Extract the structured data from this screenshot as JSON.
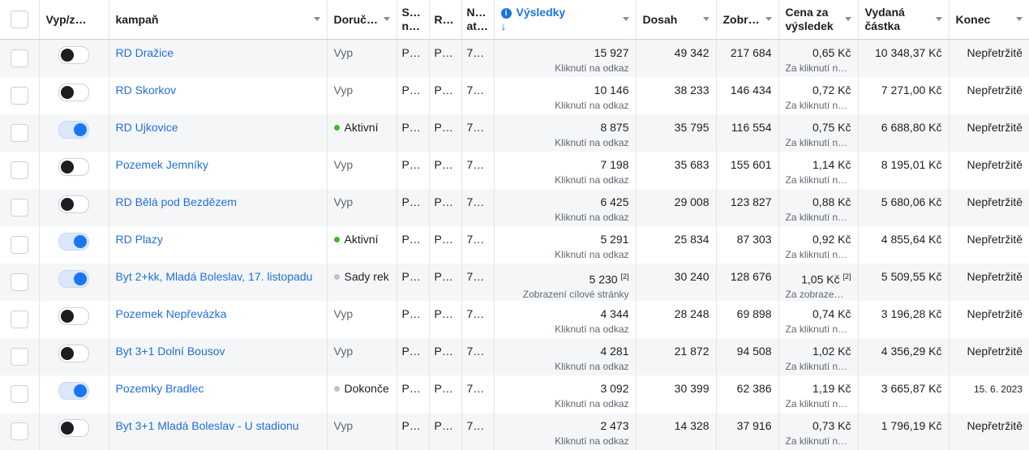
{
  "columns": {
    "onoff": "Vyp/z…",
    "campaign": "kampaň",
    "delivery": "Doruč…",
    "strategy": "S…\nn…",
    "r": "R…",
    "attribution": "N…\nat…",
    "results": "Výsledky",
    "results_sort": "↓",
    "reach": "Dosah",
    "impressions": "Zobr…",
    "cost_per_result": "Cena za výsledek",
    "amount_spent": "Vydaná částka",
    "end": "Konec"
  },
  "status_colors": {
    "active": "#42b72a",
    "neutral": "#bec3c9"
  },
  "rows": [
    {
      "toggle": false,
      "name": "RD Dražice",
      "delivery": "Vyp",
      "dot": null,
      "s": "P…",
      "r": "P…",
      "n": "7…",
      "results": "15 927",
      "results_note": "",
      "results_type": "Kliknutí na odkaz",
      "reach": "49 342",
      "impressions": "217 684",
      "cpr": "0,65 Kč",
      "cpr_note": "",
      "cpr_type": "Za kliknutí na…",
      "spent": "10 348,37 Kč",
      "end": "Nepřetržitě",
      "end_small": false
    },
    {
      "toggle": false,
      "name": "RD Skorkov",
      "delivery": "Vyp",
      "dot": null,
      "s": "P…",
      "r": "P…",
      "n": "7…",
      "results": "10 146",
      "results_note": "",
      "results_type": "Kliknutí na odkaz",
      "reach": "38 233",
      "impressions": "146 434",
      "cpr": "0,72 Kč",
      "cpr_note": "",
      "cpr_type": "Za kliknutí na…",
      "spent": "7 271,00 Kč",
      "end": "Nepřetržitě",
      "end_small": false
    },
    {
      "toggle": true,
      "name": "RD Ujkovice",
      "delivery": "Aktivní",
      "dot": "active",
      "s": "P…",
      "r": "P…",
      "n": "7…",
      "results": "8 875",
      "results_note": "",
      "results_type": "Kliknutí na odkaz",
      "reach": "35 795",
      "impressions": "116 554",
      "cpr": "0,75 Kč",
      "cpr_note": "",
      "cpr_type": "Za kliknutí na…",
      "spent": "6 688,80 Kč",
      "end": "Nepřetržitě",
      "end_small": false
    },
    {
      "toggle": false,
      "name": "Pozemek Jemníky",
      "delivery": "Vyp",
      "dot": null,
      "s": "P…",
      "r": "P…",
      "n": "7…",
      "results": "7 198",
      "results_note": "",
      "results_type": "Kliknutí na odkaz",
      "reach": "35 683",
      "impressions": "155 601",
      "cpr": "1,14 Kč",
      "cpr_note": "",
      "cpr_type": "Za kliknutí na…",
      "spent": "8 195,01 Kč",
      "end": "Nepřetržitě",
      "end_small": false
    },
    {
      "toggle": false,
      "name": "RD Bělá pod Bezdězem",
      "delivery": "Vyp",
      "dot": null,
      "s": "P…",
      "r": "P…",
      "n": "7…",
      "results": "6 425",
      "results_note": "",
      "results_type": "Kliknutí na odkaz",
      "reach": "29 008",
      "impressions": "123 827",
      "cpr": "0,88 Kč",
      "cpr_note": "",
      "cpr_type": "Za kliknutí na…",
      "spent": "5 680,06 Kč",
      "end": "Nepřetržitě",
      "end_small": false
    },
    {
      "toggle": true,
      "name": "RD Plazy",
      "delivery": "Aktivní",
      "dot": "active",
      "s": "P…",
      "r": "P…",
      "n": "7…",
      "results": "5 291",
      "results_note": "",
      "results_type": "Kliknutí na odkaz",
      "reach": "25 834",
      "impressions": "87 303",
      "cpr": "0,92 Kč",
      "cpr_note": "",
      "cpr_type": "Za kliknutí na…",
      "spent": "4 855,64 Kč",
      "end": "Nepřetržitě",
      "end_small": false
    },
    {
      "toggle": true,
      "name": "Byt 2+kk, Mladá Boleslav, 17. listopadu",
      "delivery": "Sady rek",
      "dot": "neutral",
      "s": "P…",
      "r": "P…",
      "n": "7…",
      "results": "5 230",
      "results_note": "[2]",
      "results_type": "Zobrazení cílové stránky",
      "reach": "30 240",
      "impressions": "128 676",
      "cpr": "1,05 Kč",
      "cpr_note": "[2]",
      "cpr_type": "Za zobraze…",
      "spent": "5 509,55 Kč",
      "end": "Nepřetržitě",
      "end_small": false
    },
    {
      "toggle": false,
      "name": "Pozemek Nepřevázka",
      "delivery": "Vyp",
      "dot": null,
      "s": "P…",
      "r": "P…",
      "n": "7…",
      "results": "4 344",
      "results_note": "",
      "results_type": "Kliknutí na odkaz",
      "reach": "28 248",
      "impressions": "69 898",
      "cpr": "0,74 Kč",
      "cpr_note": "",
      "cpr_type": "Za kliknutí na…",
      "spent": "3 196,28 Kč",
      "end": "Nepřetržitě",
      "end_small": false
    },
    {
      "toggle": false,
      "name": "Byt 3+1 Dolní Bousov",
      "delivery": "Vyp",
      "dot": null,
      "s": "P…",
      "r": "P…",
      "n": "7…",
      "results": "4 281",
      "results_note": "",
      "results_type": "Kliknutí na odkaz",
      "reach": "21 872",
      "impressions": "94 508",
      "cpr": "1,02 Kč",
      "cpr_note": "",
      "cpr_type": "Za kliknutí na…",
      "spent": "4 356,29 Kč",
      "end": "Nepřetržitě",
      "end_small": false
    },
    {
      "toggle": true,
      "name": "Pozemky Bradlec",
      "delivery": "Dokonče",
      "dot": "neutral",
      "s": "P…",
      "r": "P…",
      "n": "7…",
      "results": "3 092",
      "results_note": "",
      "results_type": "Kliknutí na odkaz",
      "reach": "30 399",
      "impressions": "62 386",
      "cpr": "1,19 Kč",
      "cpr_note": "",
      "cpr_type": "Za kliknutí na…",
      "spent": "3 665,87 Kč",
      "end": "15. 6. 2023",
      "end_small": true
    },
    {
      "toggle": false,
      "name": "Byt 3+1 Mladá Boleslav - U stadionu",
      "delivery": "Vyp",
      "dot": null,
      "s": "P…",
      "r": "P…",
      "n": "7…",
      "results": "2 473",
      "results_note": "",
      "results_type": "Kliknutí na odkaz",
      "reach": "14 328",
      "impressions": "37 916",
      "cpr": "0,73 Kč",
      "cpr_note": "",
      "cpr_type": "Za kliknutí na…",
      "spent": "1 796,19 Kč",
      "end": "Nepřetržitě",
      "end_small": false
    }
  ]
}
